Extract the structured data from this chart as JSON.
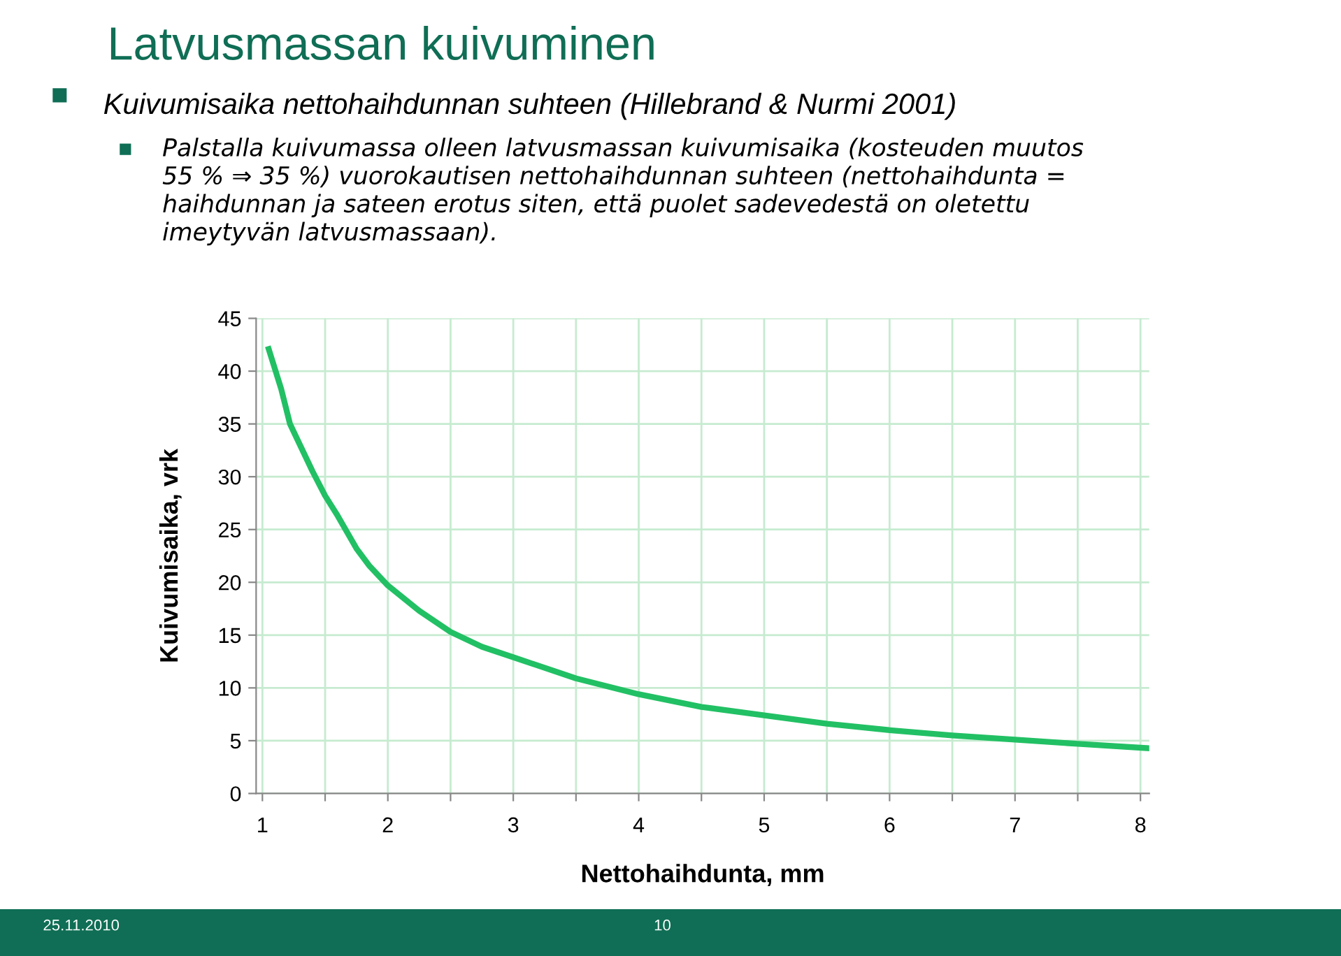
{
  "chart_data": {
    "type": "line",
    "title": "Latvusmassan kuivuminen",
    "subtitle": "Kuivumisaika nettohaihdunnan suhteen (Hillebrand & Nurmi 2001)",
    "xlabel": "Nettohaihdunta, mm",
    "ylabel": "Kuivumisaika, vrk",
    "annotations": [
      "Palstalla kuivumassa olleen latvusmassan kuivumisaika (kosteuden muutos\n55 % ⇒ 35 %) vuorokautisen nettohaihdunnan suhteen (nettohaihdunta =\nhaihdunnan ja sateen erotus siten, että puolet sadevedestä on oletettu\nimeytyvän latvusmassaan).",
      "25.11.2010",
      "10"
    ],
    "x": [
      1.05,
      1.1,
      1.15,
      1.22,
      1.3,
      1.4,
      1.5,
      1.6,
      1.75,
      1.85,
      2,
      2.25,
      2.5,
      2.75,
      3,
      3.5,
      4,
      4.5,
      5,
      5.5,
      6,
      6.5,
      7,
      7.5,
      8.05
    ],
    "series": [
      {
        "color": "#22c064",
        "values": [
          42.1,
          40.2,
          38.3,
          35,
          33,
          30.5,
          28.2,
          26.3,
          23.2,
          21.6,
          19.7,
          17.3,
          15.3,
          13.9,
          12.9,
          10.9,
          9.4,
          8.2,
          7.4,
          6.6,
          6.0,
          5.5,
          5.1,
          4.7,
          4.3
        ]
      }
    ],
    "xlim": [
      0.95,
      8.07
    ],
    "xticks": [
      1,
      {
        "value": 1.5,
        "label": null
      },
      2,
      {
        "value": 2.5,
        "label": null
      },
      3,
      {
        "value": 3.5,
        "label": null
      },
      4,
      {
        "value": 4.5,
        "label": null
      },
      5,
      {
        "value": 5.5,
        "label": null
      },
      6,
      {
        "value": 6.5,
        "label": null
      },
      7,
      {
        "value": 7.5,
        "label": null
      },
      8
    ],
    "ylim": [
      0,
      45
    ],
    "yticks": [
      0,
      5,
      10,
      15,
      20,
      25,
      30,
      35,
      40,
      45
    ],
    "grid": true,
    "marker": "none",
    "line_style": "solid"
  }
}
